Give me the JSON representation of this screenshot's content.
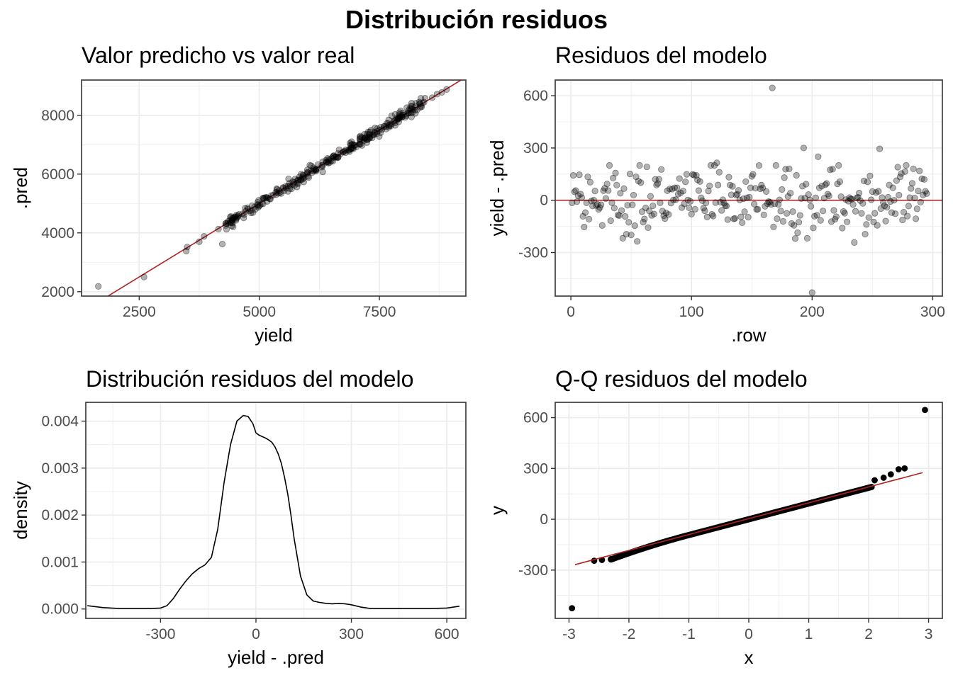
{
  "figure_title": "Distribución residuos",
  "colors": {
    "points": "#000000",
    "ref_line": "#b22222",
    "grid": "#ebebeb",
    "panel_border": "#333333",
    "tick_text": "#4d4d4d"
  },
  "chart_data": [
    {
      "id": "pred-vs-real",
      "type": "scatter",
      "title": "Valor predicho vs valor real",
      "xlabel": "yield",
      "ylabel": ".pred",
      "xlim": [
        1300,
        9300
      ],
      "ylim": [
        1850,
        9200
      ],
      "xticks": [
        2500,
        5000,
        7500
      ],
      "yticks": [
        2000,
        4000,
        6000,
        8000
      ],
      "grid": true,
      "point_alpha": 0.3,
      "reference_line": {
        "type": "identity",
        "slope": 1,
        "intercept": 0
      },
      "points_summary": "approx. 300 points clustered along identity line, yield 3400-9000",
      "points": [
        [
          1650,
          2180
        ],
        [
          2600,
          2500
        ],
        [
          3480,
          3380
        ],
        [
          3500,
          3520
        ],
        [
          3750,
          3700
        ],
        [
          3850,
          3880
        ],
        [
          4150,
          4130
        ],
        [
          4230,
          3620
        ],
        [
          4300,
          4250
        ],
        [
          4400,
          4350
        ],
        [
          4550,
          4550
        ],
        [
          4650,
          4650
        ],
        [
          4800,
          4750
        ],
        [
          4900,
          4880
        ],
        [
          5050,
          5000
        ],
        [
          5150,
          5200
        ],
        [
          5250,
          5270
        ],
        [
          5400,
          5350
        ],
        [
          5500,
          5520
        ],
        [
          5600,
          5600
        ],
        [
          5700,
          5650
        ],
        [
          5800,
          5780
        ],
        [
          5900,
          5900
        ],
        [
          6000,
          6020
        ],
        [
          6100,
          6050
        ],
        [
          6200,
          6180
        ],
        [
          6300,
          6300
        ],
        [
          6400,
          6420
        ],
        [
          6500,
          6450
        ],
        [
          6600,
          6580
        ],
        [
          6700,
          6700
        ],
        [
          6800,
          6820
        ],
        [
          6900,
          6850
        ],
        [
          7000,
          6980
        ],
        [
          7100,
          7100
        ],
        [
          7200,
          7220
        ],
        [
          7300,
          7250
        ],
        [
          7400,
          7380
        ],
        [
          7500,
          7500
        ],
        [
          7600,
          7620
        ],
        [
          7700,
          7650
        ],
        [
          7800,
          7780
        ],
        [
          7900,
          7900
        ],
        [
          8000,
          8010
        ],
        [
          8100,
          8080
        ],
        [
          8200,
          8200
        ],
        [
          8400,
          8420
        ],
        [
          8600,
          8600
        ],
        [
          8700,
          8720
        ],
        [
          8800,
          8780
        ],
        [
          8900,
          8880
        ]
      ]
    },
    {
      "id": "residuos-modelo",
      "type": "scatter",
      "title": "Residuos del modelo",
      "xlabel": ".row",
      "ylabel": "yield - .pred",
      "xlim": [
        -13,
        308
      ],
      "ylim": [
        -550,
        690
      ],
      "xticks": [
        0,
        100,
        200,
        300
      ],
      "yticks": [
        -300,
        0,
        300,
        600
      ],
      "grid": true,
      "point_alpha": 0.3,
      "reference_line": {
        "type": "horizontal",
        "y": 0
      },
      "outliers": [
        [
          167,
          645
        ],
        [
          200,
          -530
        ],
        [
          193,
          300
        ],
        [
          256,
          295
        ],
        [
          205,
          250
        ],
        [
          121,
          215
        ]
      ],
      "n_points": 295
    },
    {
      "id": "densidad-residuos",
      "type": "line",
      "title": "Distribución residuos del modelo",
      "xlabel": "yield - .pred",
      "ylabel": "density",
      "xlim": [
        -535,
        660
      ],
      "ylim": [
        -0.0002,
        0.0044
      ],
      "xticks": [
        -300,
        0,
        300,
        600
      ],
      "yticks": [
        0.0,
        0.001,
        0.002,
        0.003,
        0.004
      ],
      "ytick_labels": [
        "0.000",
        "0.001",
        "0.002",
        "0.003",
        "0.004"
      ],
      "grid": true,
      "x": [
        -530,
        -480,
        -430,
        -380,
        -330,
        -300,
        -280,
        -260,
        -240,
        -220,
        -200,
        -180,
        -160,
        -140,
        -120,
        -100,
        -80,
        -60,
        -40,
        -25,
        -10,
        0,
        10,
        20,
        30,
        40,
        50,
        60,
        70,
        80,
        90,
        100,
        110,
        120,
        140,
        160,
        180,
        200,
        220,
        240,
        260,
        280,
        300,
        330,
        360,
        400,
        450,
        500,
        550,
        600,
        640
      ],
      "y": [
        7e-05,
        3e-05,
        1e-05,
        1e-05,
        1e-05,
        2e-05,
        7e-05,
        0.00022,
        0.00042,
        0.0006,
        0.00075,
        0.00086,
        0.00094,
        0.0011,
        0.0017,
        0.0027,
        0.0035,
        0.004,
        0.00412,
        0.0041,
        0.00395,
        0.00375,
        0.0037,
        0.00367,
        0.00364,
        0.0036,
        0.00355,
        0.00345,
        0.0033,
        0.0031,
        0.0028,
        0.00245,
        0.002,
        0.0015,
        0.0007,
        0.0003,
        0.00017,
        0.00014,
        0.00012,
        0.00011,
        0.00012,
        0.00011,
        9e-05,
        4e-05,
        1e-05,
        1e-05,
        1e-05,
        1e-05,
        1e-05,
        2e-05,
        6e-05
      ]
    },
    {
      "id": "qq-residuos",
      "type": "scatter",
      "title": "Q-Q residuos del modelo",
      "xlabel": "x",
      "ylabel": "y",
      "xlim": [
        -3.23,
        3.23
      ],
      "ylim": [
        -585,
        690
      ],
      "xticks": [
        -3,
        -2,
        -1,
        0,
        1,
        2,
        3
      ],
      "yticks": [
        -300,
        0,
        300,
        600
      ],
      "grid": true,
      "reference_line": {
        "type": "qq",
        "from": [
          -2.9,
          -268
        ],
        "to": [
          2.9,
          275
        ]
      },
      "extreme_points": [
        [
          -2.95,
          -525
        ],
        [
          -2.58,
          -245
        ],
        [
          -2.45,
          -240
        ],
        [
          -2.3,
          -235
        ],
        [
          2.1,
          230
        ],
        [
          2.25,
          245
        ],
        [
          2.37,
          265
        ],
        [
          2.5,
          295
        ],
        [
          2.6,
          300
        ],
        [
          2.94,
          645
        ]
      ]
    }
  ]
}
